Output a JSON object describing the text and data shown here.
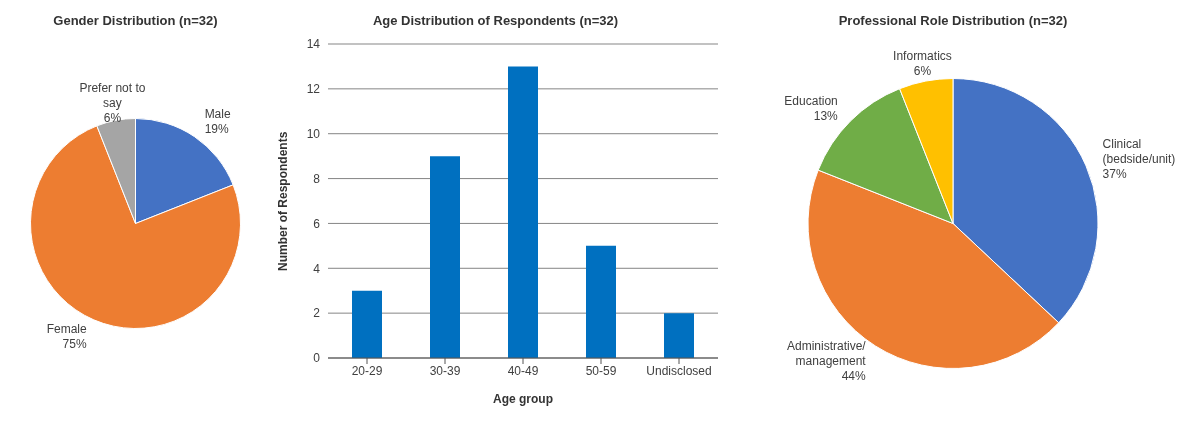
{
  "chart_data": [
    {
      "type": "pie",
      "title": "Gender Distribution (n=32)",
      "categories": [
        "Male",
        "Female",
        "Prefer not to say"
      ],
      "values": [
        19,
        75,
        6
      ],
      "colors": [
        "#4472c4",
        "#ed7d31",
        "#a5a5a5"
      ],
      "value_labels": [
        "19%",
        "75%",
        "6%"
      ]
    },
    {
      "type": "bar",
      "title": "Age Distribution of Respondents (n=32)",
      "xlabel": "Age group",
      "ylabel": "Number of Respondents",
      "categories": [
        "20-29",
        "30-39",
        "40-49",
        "50-59",
        "Undisclosed"
      ],
      "values": [
        3,
        9,
        13,
        5,
        2
      ],
      "color": "#0070c0",
      "ylim": [
        0,
        14
      ],
      "yticks": [
        0,
        2,
        4,
        6,
        8,
        10,
        12,
        14
      ],
      "grid": "y"
    },
    {
      "type": "pie",
      "title": "Professional Role Distribution (n=32)",
      "categories": [
        "Clinical (bedside/unit)",
        "Administrative/ management",
        "Education",
        "Informatics"
      ],
      "values": [
        37,
        44,
        13,
        6
      ],
      "colors": [
        "#4472c4",
        "#ed7d31",
        "#70ad47",
        "#ffc000"
      ],
      "value_labels": [
        "37%",
        "44%",
        "13%",
        "6%"
      ]
    }
  ]
}
